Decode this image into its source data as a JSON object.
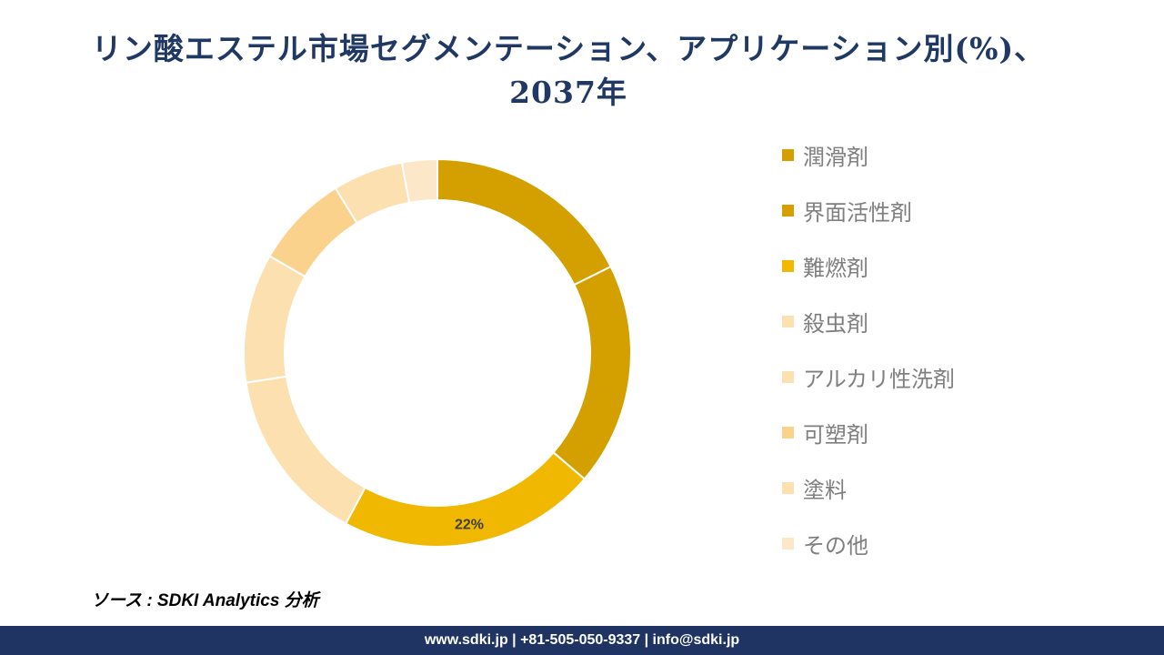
{
  "title_line1": "リン酸エステル市場セグメンテーション、アプリケーション別(%)、",
  "title_line2": "2037年",
  "chart_data": {
    "type": "pie",
    "style": "donut",
    "categories": [
      "潤滑剤",
      "界面活性剤",
      "難燃剤",
      "殺虫剤",
      "アルカリ性洗剤",
      "可塑剤",
      "塗料",
      "その他"
    ],
    "values": [
      18,
      19,
      22,
      15,
      11,
      8,
      6,
      3
    ],
    "colors": [
      "#d4a000",
      "#d4a000",
      "#f0b800",
      "#fce0b0",
      "#fce0b0",
      "#fbd28c",
      "#fce0b0",
      "#fce7c8"
    ],
    "data_labels": [
      "",
      "",
      "22%",
      "",
      "",
      "",
      "",
      ""
    ],
    "legend_position": "right"
  },
  "source": "ソース : SDKI Analytics 分析",
  "footer": "www.sdki.jp | +81-505-050-9337 | info@sdki.jp"
}
